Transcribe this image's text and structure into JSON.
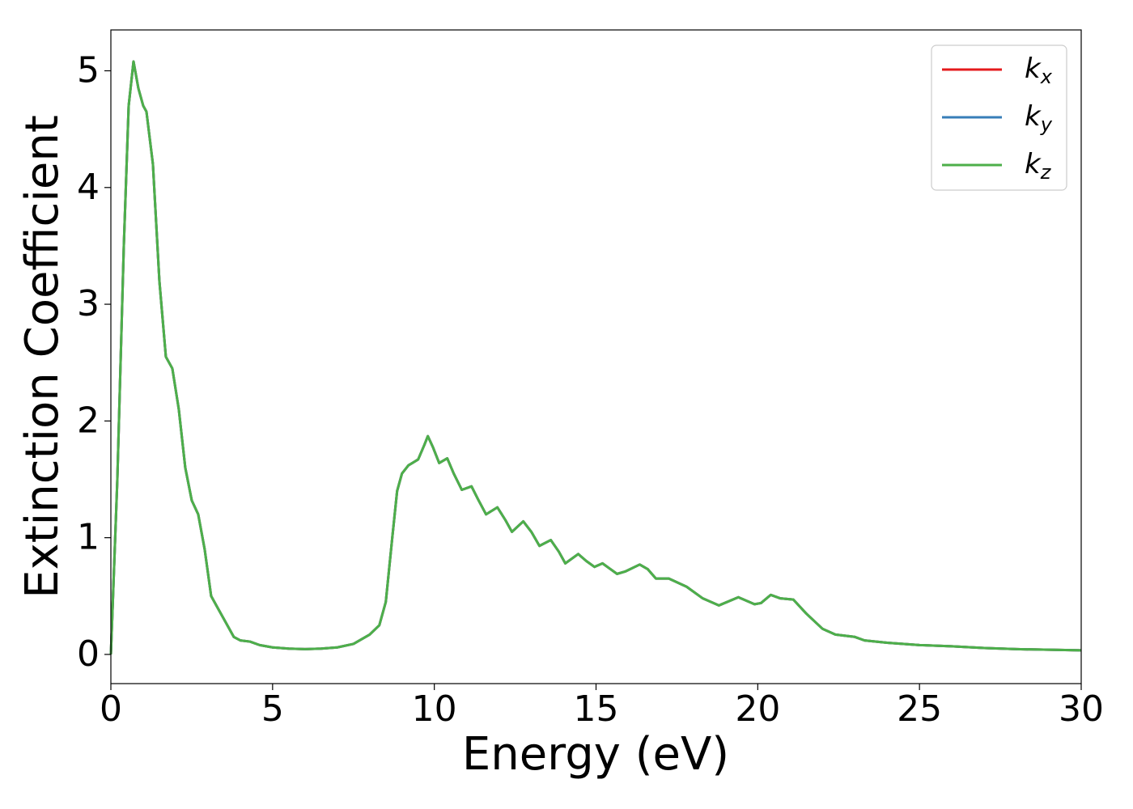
{
  "chart_data": {
    "type": "line",
    "xlabel": "Energy (eV)",
    "ylabel": "Extinction Coefficient",
    "x": [
      0,
      0.2,
      0.4,
      0.55,
      0.7,
      0.85,
      1.0,
      1.1,
      1.3,
      1.5,
      1.7,
      1.9,
      2.1,
      2.3,
      2.5,
      2.7,
      2.9,
      3.1,
      3.3,
      3.5,
      3.8,
      4.0,
      4.3,
      4.6,
      5.0,
      5.5,
      6.0,
      6.5,
      7.0,
      7.5,
      8.0,
      8.3,
      8.5,
      8.7,
      8.85,
      9.0,
      9.2,
      9.5,
      9.7,
      9.8,
      9.95,
      10.15,
      10.4,
      10.6,
      10.85,
      11.15,
      11.35,
      11.6,
      11.95,
      12.2,
      12.4,
      12.75,
      13.0,
      13.25,
      13.6,
      13.85,
      14.05,
      14.45,
      14.7,
      14.95,
      15.2,
      15.4,
      15.65,
      15.9,
      16.35,
      16.6,
      16.85,
      17.25,
      17.8,
      18.3,
      18.8,
      19.4,
      19.9,
      20.1,
      20.4,
      20.7,
      21.1,
      21.5,
      22.0,
      22.4,
      23.0,
      23.3,
      24.0,
      25.0,
      26.0,
      27.0,
      28.0,
      29.0,
      30.0
    ],
    "series": [
      {
        "name": "kx",
        "color": "#e41a1c",
        "values": [
          0,
          1.5,
          3.5,
          4.7,
          5.08,
          4.85,
          4.7,
          4.65,
          4.2,
          3.2,
          2.55,
          2.45,
          2.1,
          1.6,
          1.32,
          1.2,
          0.9,
          0.5,
          0.4,
          0.3,
          0.15,
          0.12,
          0.11,
          0.08,
          0.06,
          0.05,
          0.045,
          0.05,
          0.06,
          0.09,
          0.17,
          0.25,
          0.45,
          1.0,
          1.4,
          1.55,
          1.62,
          1.67,
          1.8,
          1.87,
          1.78,
          1.64,
          1.68,
          1.55,
          1.41,
          1.44,
          1.33,
          1.2,
          1.26,
          1.15,
          1.05,
          1.14,
          1.05,
          0.93,
          0.98,
          0.88,
          0.78,
          0.86,
          0.8,
          0.75,
          0.78,
          0.74,
          0.69,
          0.71,
          0.77,
          0.73,
          0.65,
          0.65,
          0.58,
          0.48,
          0.42,
          0.49,
          0.43,
          0.44,
          0.51,
          0.48,
          0.47,
          0.35,
          0.22,
          0.17,
          0.15,
          0.12,
          0.1,
          0.08,
          0.07,
          0.055,
          0.045,
          0.04,
          0.035
        ]
      },
      {
        "name": "ky",
        "color": "#377eb8",
        "values": [
          0,
          1.5,
          3.5,
          4.7,
          5.08,
          4.85,
          4.7,
          4.65,
          4.2,
          3.2,
          2.55,
          2.45,
          2.1,
          1.6,
          1.32,
          1.2,
          0.9,
          0.5,
          0.4,
          0.3,
          0.15,
          0.12,
          0.11,
          0.08,
          0.06,
          0.05,
          0.045,
          0.05,
          0.06,
          0.09,
          0.17,
          0.25,
          0.45,
          1.0,
          1.4,
          1.55,
          1.62,
          1.67,
          1.8,
          1.87,
          1.78,
          1.64,
          1.68,
          1.55,
          1.41,
          1.44,
          1.33,
          1.2,
          1.26,
          1.15,
          1.05,
          1.14,
          1.05,
          0.93,
          0.98,
          0.88,
          0.78,
          0.86,
          0.8,
          0.75,
          0.78,
          0.74,
          0.69,
          0.71,
          0.77,
          0.73,
          0.65,
          0.65,
          0.58,
          0.48,
          0.42,
          0.49,
          0.43,
          0.44,
          0.51,
          0.48,
          0.47,
          0.35,
          0.22,
          0.17,
          0.15,
          0.12,
          0.1,
          0.08,
          0.07,
          0.055,
          0.045,
          0.04,
          0.035
        ]
      },
      {
        "name": "kz",
        "color": "#4daf4a",
        "values": [
          0,
          1.5,
          3.5,
          4.7,
          5.08,
          4.85,
          4.7,
          4.65,
          4.2,
          3.2,
          2.55,
          2.45,
          2.1,
          1.6,
          1.32,
          1.2,
          0.9,
          0.5,
          0.4,
          0.3,
          0.15,
          0.12,
          0.11,
          0.08,
          0.06,
          0.05,
          0.045,
          0.05,
          0.06,
          0.09,
          0.17,
          0.25,
          0.45,
          1.0,
          1.4,
          1.55,
          1.62,
          1.67,
          1.8,
          1.87,
          1.78,
          1.64,
          1.68,
          1.55,
          1.41,
          1.44,
          1.33,
          1.2,
          1.26,
          1.15,
          1.05,
          1.14,
          1.05,
          0.93,
          0.98,
          0.88,
          0.78,
          0.86,
          0.8,
          0.75,
          0.78,
          0.74,
          0.69,
          0.71,
          0.77,
          0.73,
          0.65,
          0.65,
          0.58,
          0.48,
          0.42,
          0.49,
          0.43,
          0.44,
          0.51,
          0.48,
          0.47,
          0.35,
          0.22,
          0.17,
          0.15,
          0.12,
          0.1,
          0.08,
          0.07,
          0.055,
          0.045,
          0.04,
          0.035
        ]
      }
    ],
    "xlim": [
      0,
      30
    ],
    "xticks": [
      0,
      5,
      10,
      15,
      20,
      25,
      30
    ],
    "ylim": [
      -0.25,
      5.35
    ],
    "yticks": [
      0,
      1,
      2,
      3,
      4,
      5
    ],
    "grid": false,
    "legend": "upper right"
  }
}
